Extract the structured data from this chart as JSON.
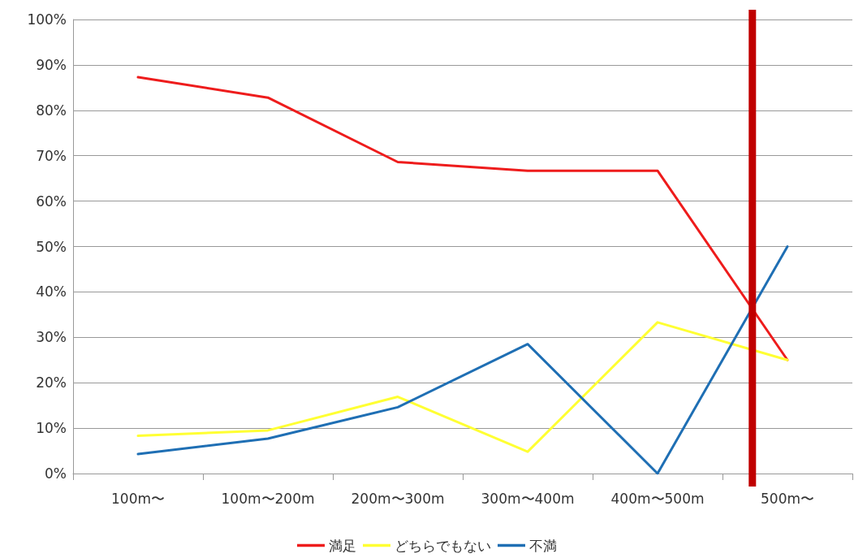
{
  "chart_data": {
    "type": "line",
    "categories": [
      "100m〜",
      "100m〜200m",
      "200m〜300m",
      "300m〜400m",
      "400m〜500m",
      "500m〜"
    ],
    "series": [
      {
        "name": "満足",
        "color": "#ee1c1c",
        "values": [
          87.3,
          82.8,
          68.6,
          66.7,
          66.7,
          25
        ]
      },
      {
        "name": "どちらでもない",
        "color": "#ffff33",
        "values": [
          8.3,
          9.5,
          16.9,
          4.8,
          33.3,
          25
        ]
      },
      {
        "name": "不満",
        "color": "#1f6fb4",
        "values": [
          4.3,
          7.7,
          14.6,
          28.5,
          0,
          50
        ]
      }
    ],
    "ylim": [
      0,
      100
    ],
    "yticks": [
      {
        "value": 0,
        "label": "0%"
      },
      {
        "value": 10,
        "label": "10%"
      },
      {
        "value": 20,
        "label": "20%"
      },
      {
        "value": 30,
        "label": "30%"
      },
      {
        "value": 40,
        "label": "40%"
      },
      {
        "value": 50,
        "label": "50%"
      },
      {
        "value": 60,
        "label": "60%"
      },
      {
        "value": 70,
        "label": "70%"
      },
      {
        "value": 80,
        "label": "80%"
      },
      {
        "value": 90,
        "label": "90%"
      },
      {
        "value": 100,
        "label": "100%"
      }
    ],
    "ref_lines": [
      {
        "axis": "x",
        "value": "500m〜",
        "color": "#c00000",
        "line_style": "solid"
      }
    ],
    "grid": "y",
    "legend": "bottom",
    "marker": "none",
    "line_style": "solid"
  }
}
